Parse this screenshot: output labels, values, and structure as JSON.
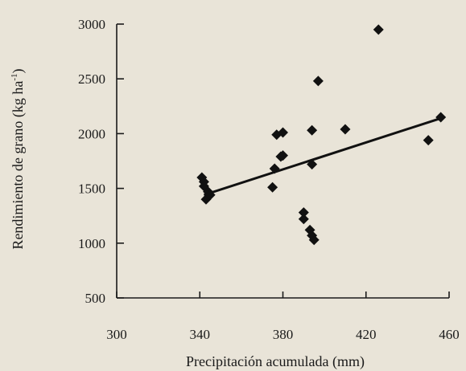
{
  "chart_data": {
    "type": "scatter",
    "xlabel": "Precipitación acumulada (mm)",
    "ylabel": "Rendimiento de grano (kg ha",
    "ylabel_superscript": "-1",
    "ylabel_close": ")",
    "xlim": [
      300,
      460
    ],
    "ylim": [
      500,
      3000
    ],
    "xticks": [
      300,
      340,
      380,
      420,
      460
    ],
    "yticks": [
      500,
      1000,
      1500,
      2000,
      2500,
      3000
    ],
    "grid": false,
    "legend": "none",
    "marker": "diamond",
    "points": [
      {
        "x": 341,
        "y": 1600
      },
      {
        "x": 342,
        "y": 1560
      },
      {
        "x": 342,
        "y": 1520
      },
      {
        "x": 343,
        "y": 1400
      },
      {
        "x": 344,
        "y": 1470
      },
      {
        "x": 345,
        "y": 1440
      },
      {
        "x": 375,
        "y": 1510
      },
      {
        "x": 376,
        "y": 1680
      },
      {
        "x": 377,
        "y": 1990
      },
      {
        "x": 380,
        "y": 2010
      },
      {
        "x": 379,
        "y": 1790
      },
      {
        "x": 380,
        "y": 1800
      },
      {
        "x": 390,
        "y": 1280
      },
      {
        "x": 390,
        "y": 1220
      },
      {
        "x": 393,
        "y": 1120
      },
      {
        "x": 394,
        "y": 1070
      },
      {
        "x": 395,
        "y": 1030
      },
      {
        "x": 394,
        "y": 2030
      },
      {
        "x": 394,
        "y": 1720
      },
      {
        "x": 397,
        "y": 2480
      },
      {
        "x": 410,
        "y": 2040
      },
      {
        "x": 426,
        "y": 2950
      },
      {
        "x": 450,
        "y": 1940
      },
      {
        "x": 456,
        "y": 2150
      }
    ],
    "trendline": {
      "x": [
        342,
        456
      ],
      "y": [
        1440,
        2140
      ]
    }
  }
}
